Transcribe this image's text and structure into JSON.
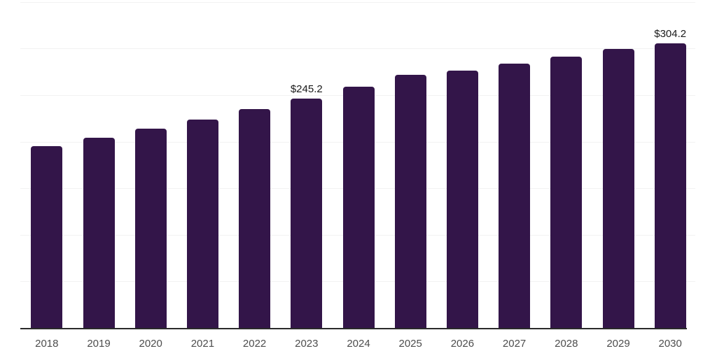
{
  "chart_data": {
    "type": "bar",
    "title": "",
    "xlabel": "",
    "ylabel": "",
    "categories": [
      "2018",
      "2019",
      "2020",
      "2021",
      "2022",
      "2023",
      "2024",
      "2025",
      "2026",
      "2027",
      "2028",
      "2029",
      "2030"
    ],
    "values": [
      194.4,
      203.2,
      213.1,
      222.8,
      234.0,
      245.2,
      257.5,
      270.4,
      274.9,
      282.6,
      290.0,
      298.3,
      304.2
    ],
    "annotations": [
      {
        "category": "2023",
        "text": "$245.2"
      },
      {
        "category": "2030",
        "text": "$304.2"
      }
    ],
    "unit_prefix": "$",
    "ylim": [
      0,
      350
    ],
    "grid_step": 50,
    "grid_on": true,
    "legend": "none",
    "colors": {
      "bar": "#331549",
      "axis": "#2b2b2b",
      "gridline": "#f2f2f2",
      "tick_label": "#4d4d4d",
      "value_label": "#1a1a1a",
      "background": "#ffffff"
    }
  }
}
